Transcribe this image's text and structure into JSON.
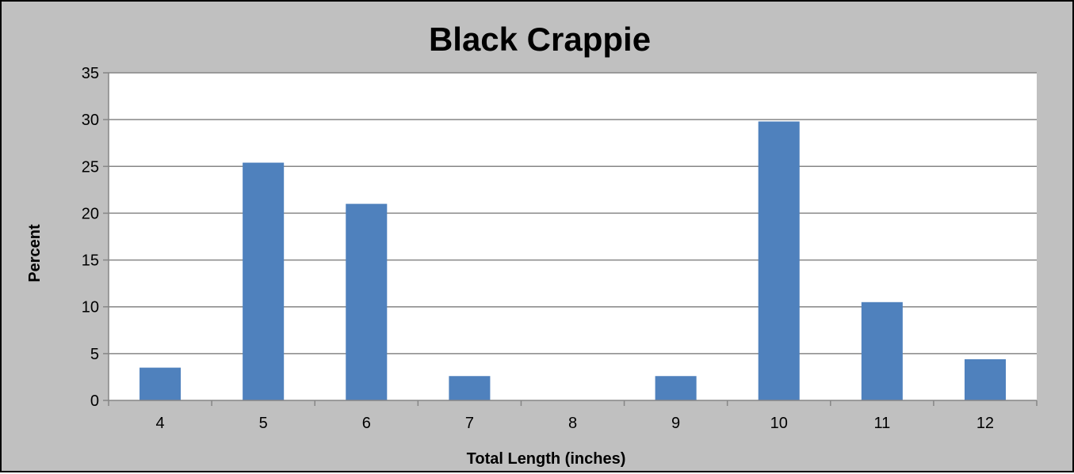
{
  "chart_data": {
    "type": "bar",
    "title": "Black Crappie",
    "xlabel": "Total Length (inches)",
    "ylabel": "Percent",
    "categories": [
      "4",
      "5",
      "6",
      "7",
      "8",
      "9",
      "10",
      "11",
      "12"
    ],
    "values": [
      3.5,
      25.4,
      21.0,
      2.6,
      0,
      2.6,
      29.8,
      10.5,
      4.4
    ],
    "ylim": [
      0,
      35
    ],
    "yticks": [
      "0",
      "5",
      "10",
      "15",
      "20",
      "25",
      "30",
      "35"
    ],
    "grid": true,
    "legend": "none",
    "colors": {
      "bar": "#4f81bd",
      "frame_background": "#c0c0c0",
      "plot_background": "#ffffff",
      "gridline": "#868686"
    }
  }
}
